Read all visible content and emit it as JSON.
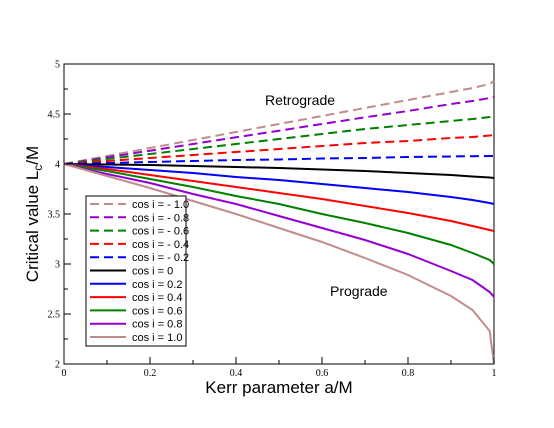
{
  "chart_data": {
    "type": "line",
    "xlabel": "Kerr parameter a/M",
    "ylabel_main": "Critical value L",
    "ylabel_sub": "c",
    "ylabel_tail": "/M",
    "xlim": [
      0,
      1
    ],
    "ylim": [
      2,
      5
    ],
    "x_ticks": [
      "0",
      "0.2",
      "0.4",
      "0.6",
      "0.8",
      "1"
    ],
    "y_ticks": [
      "2",
      "2.5",
      "3",
      "3.5",
      "4",
      "4.5",
      "5"
    ],
    "grid": false,
    "legend_position": "bottom-left",
    "annotations": [
      {
        "text": "Retrograde"
      },
      {
        "text": "Prograde"
      }
    ],
    "x": [
      0,
      0.1,
      0.2,
      0.3,
      0.4,
      0.5,
      0.6,
      0.7,
      0.8,
      0.9,
      0.95,
      0.99,
      1.0
    ],
    "series": [
      {
        "name": "cos i = - 1.0",
        "color": "#c08c8c",
        "dashed": true,
        "values": [
          4.0,
          4.08,
          4.16,
          4.24,
          4.32,
          4.4,
          4.48,
          4.56,
          4.64,
          4.72,
          4.76,
          4.8,
          4.83
        ]
      },
      {
        "name": "cos i = - 0.8",
        "color": "#9400d3",
        "dashed": true,
        "values": [
          4.0,
          4.067,
          4.133,
          4.2,
          4.267,
          4.333,
          4.4,
          4.467,
          4.53,
          4.6,
          4.63,
          4.66,
          4.67
        ]
      },
      {
        "name": "cos i = - 0.6",
        "color": "#008000",
        "dashed": true,
        "values": [
          4.0,
          4.05,
          4.1,
          4.15,
          4.2,
          4.25,
          4.3,
          4.35,
          4.39,
          4.43,
          4.45,
          4.47,
          4.48
        ]
      },
      {
        "name": "cos i = - 0.4",
        "color": "#ff0000",
        "dashed": true,
        "values": [
          4.0,
          4.03,
          4.06,
          4.09,
          4.12,
          4.15,
          4.18,
          4.21,
          4.23,
          4.26,
          4.27,
          4.285,
          4.29
        ]
      },
      {
        "name": "cos i = - 0.2",
        "color": "#0000ff",
        "dashed": true,
        "values": [
          4.0,
          4.01,
          4.02,
          4.03,
          4.04,
          4.045,
          4.055,
          4.06,
          4.07,
          4.075,
          4.078,
          4.08,
          4.08
        ]
      },
      {
        "name": "cos i = 0",
        "color": "#000000",
        "dashed": false,
        "values": [
          4.0,
          3.995,
          3.99,
          3.98,
          3.97,
          3.96,
          3.945,
          3.93,
          3.91,
          3.89,
          3.875,
          3.865,
          3.86
        ]
      },
      {
        "name": "cos i = 0.2",
        "color": "#0000ff",
        "dashed": false,
        "values": [
          4.0,
          3.97,
          3.94,
          3.91,
          3.87,
          3.84,
          3.8,
          3.76,
          3.72,
          3.67,
          3.64,
          3.61,
          3.6
        ]
      },
      {
        "name": "cos i = 0.4",
        "color": "#ff0000",
        "dashed": false,
        "values": [
          4.0,
          3.95,
          3.89,
          3.83,
          3.77,
          3.71,
          3.65,
          3.58,
          3.51,
          3.43,
          3.38,
          3.34,
          3.33
        ]
      },
      {
        "name": "cos i = 0.6",
        "color": "#008000",
        "dashed": false,
        "values": [
          4.0,
          3.93,
          3.85,
          3.77,
          3.68,
          3.6,
          3.5,
          3.41,
          3.31,
          3.19,
          3.11,
          3.04,
          3.0
        ]
      },
      {
        "name": "cos i = 0.8",
        "color": "#9400d3",
        "dashed": false,
        "values": [
          4.0,
          3.9,
          3.81,
          3.7,
          3.6,
          3.48,
          3.36,
          3.24,
          3.1,
          2.93,
          2.84,
          2.72,
          2.67
        ]
      },
      {
        "name": "cos i = 1.0",
        "color": "#c08c8c",
        "dashed": false,
        "values": [
          4.0,
          3.88,
          3.76,
          3.63,
          3.5,
          3.36,
          3.22,
          3.06,
          2.89,
          2.68,
          2.54,
          2.33,
          2.0
        ]
      }
    ]
  }
}
